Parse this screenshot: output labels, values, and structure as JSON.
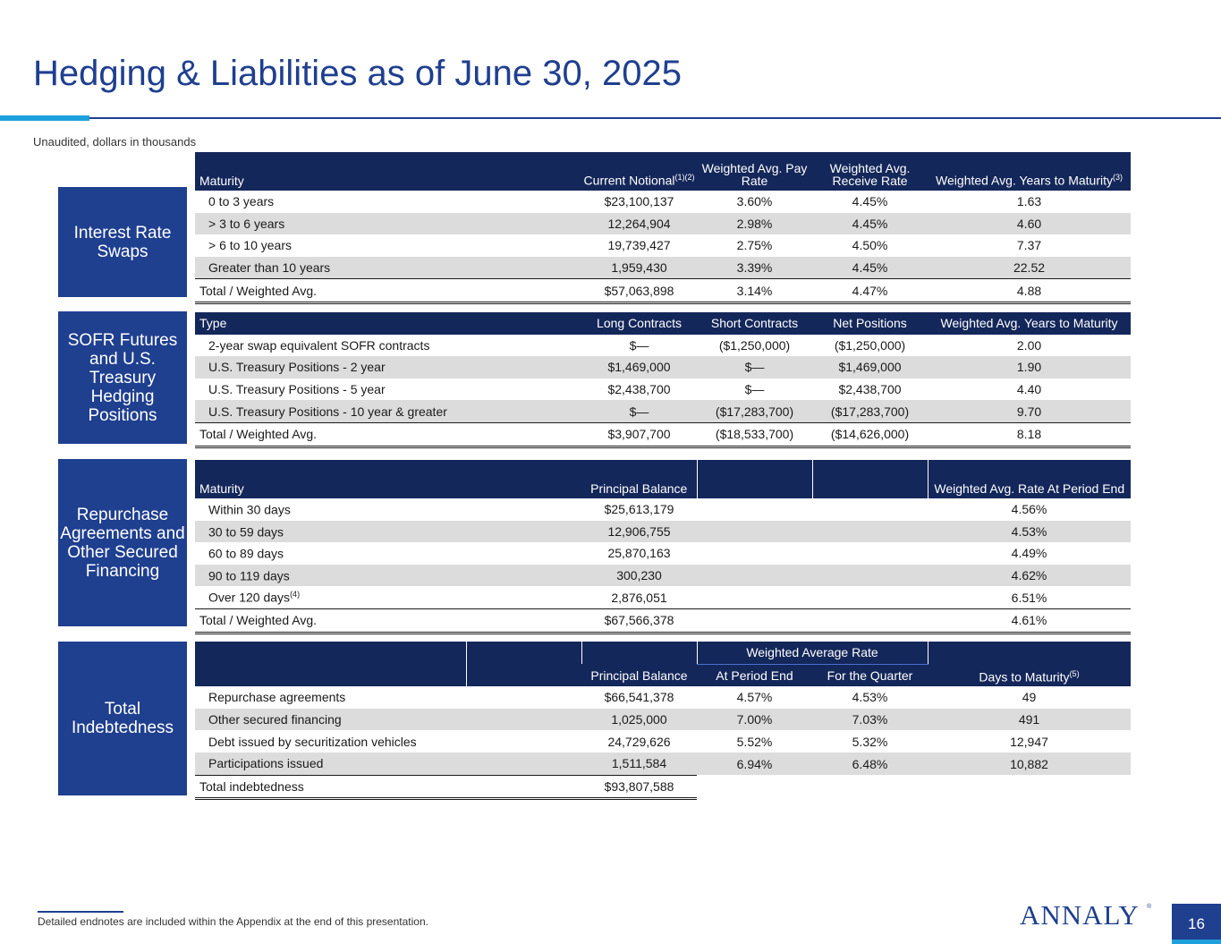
{
  "title": "Hedging & Liabilities as of June 30, 2025",
  "subtitle": "Unaudited, dollars in thousands",
  "swaps": {
    "label": "Interest Rate Swaps",
    "headers": {
      "maturity": "Maturity",
      "notional": "Current Notional",
      "notional_note": "(1)(2)",
      "pay": "Weighted Avg. Pay Rate",
      "receive": "Weighted Avg. Receive Rate",
      "years": "Weighted Avg. Years to Maturity",
      "years_note": "(3)"
    },
    "rows": [
      {
        "maturity": "0 to 3 years",
        "notional": "$23,100,137",
        "pay": "3.60%",
        "receive": "4.45%",
        "years": "1.63"
      },
      {
        "maturity": "> 3 to 6 years",
        "notional": "12,264,904",
        "pay": "2.98%",
        "receive": "4.45%",
        "years": "4.60"
      },
      {
        "maturity": "> 6 to 10 years",
        "notional": "19,739,427",
        "pay": "2.75%",
        "receive": "4.50%",
        "years": "7.37"
      },
      {
        "maturity": "Greater than 10 years",
        "notional": "1,959,430",
        "pay": "3.39%",
        "receive": "4.45%",
        "years": "22.52"
      }
    ],
    "total": {
      "maturity": "Total / Weighted Avg.",
      "notional": "$57,063,898",
      "pay": "3.14%",
      "receive": "4.47%",
      "years": "4.88"
    }
  },
  "sofr": {
    "label": "SOFR Futures and U.S. Treasury Hedging Positions",
    "headers": {
      "type": "Type",
      "long": "Long Contracts",
      "short": "Short Contracts",
      "net": "Net Positions",
      "years": "Weighted Avg. Years to Maturity"
    },
    "rows": [
      {
        "type": "2-year swap equivalent SOFR contracts",
        "long": "$—",
        "short": "($1,250,000)",
        "net": "($1,250,000)",
        "years": "2.00"
      },
      {
        "type": "U.S. Treasury Positions - 2 year",
        "long": "$1,469,000",
        "short": "$—",
        "net": "$1,469,000",
        "years": "1.90"
      },
      {
        "type": "U.S. Treasury Positions - 5 year",
        "long": "$2,438,700",
        "short": "$—",
        "net": "$2,438,700",
        "years": "4.40"
      },
      {
        "type": "U.S. Treasury Positions - 10 year & greater",
        "long": "$—",
        "short": "($17,283,700)",
        "net": "($17,283,700)",
        "years": "9.70"
      }
    ],
    "total": {
      "type": "Total / Weighted Avg.",
      "long": "$3,907,700",
      "short": "($18,533,700)",
      "net": "($14,626,000)",
      "years": "8.18"
    }
  },
  "repo": {
    "label": "Repurchase Agreements and Other Secured Financing",
    "headers": {
      "maturity": "Maturity",
      "principal": "Principal Balance",
      "rate": "Weighted Avg. Rate At Period End"
    },
    "rows": [
      {
        "maturity": "Within 30 days",
        "principal": "$25,613,179",
        "rate": "4.56%",
        "note": ""
      },
      {
        "maturity": "30 to 59 days",
        "principal": "12,906,755",
        "rate": "4.53%",
        "note": ""
      },
      {
        "maturity": "60 to 89 days",
        "principal": "25,870,163",
        "rate": "4.49%",
        "note": ""
      },
      {
        "maturity": "90 to 119 days",
        "principal": "300,230",
        "rate": "4.62%",
        "note": ""
      },
      {
        "maturity": "Over 120 days",
        "principal": "2,876,051",
        "rate": "6.51%",
        "note": "(4)"
      }
    ],
    "total": {
      "maturity": "Total / Weighted Avg.",
      "principal": "$67,566,378",
      "rate": "4.61%"
    }
  },
  "debt": {
    "label": "Total Indebtedness",
    "headers": {
      "group": "Weighted Average Rate",
      "principal": "Principal Balance",
      "period_end": "At Period End",
      "quarter": "For the Quarter",
      "days": "Days to Maturity",
      "days_note": "(5)"
    },
    "rows": [
      {
        "name": "Repurchase agreements",
        "principal": "$66,541,378",
        "period_end": "4.57%",
        "quarter": "4.53%",
        "days": "49"
      },
      {
        "name": "Other secured financing",
        "principal": "1,025,000",
        "period_end": "7.00%",
        "quarter": "7.03%",
        "days": "491"
      },
      {
        "name": "Debt issued by securitization vehicles",
        "principal": "24,729,626",
        "period_end": "5.52%",
        "quarter": "5.32%",
        "days": "12,947"
      },
      {
        "name": "Participations issued",
        "principal": "1,511,584",
        "period_end": "6.94%",
        "quarter": "6.48%",
        "days": "10,882"
      }
    ],
    "total": {
      "name": "Total indebtedness",
      "principal": "$93,807,588"
    }
  },
  "footnote": "Detailed endnotes are included within the Appendix at the end of this presentation.",
  "logo": "ANNALY",
  "logo_mark": "®",
  "page_number": "16",
  "colors": {
    "primary": "#1f3f8f",
    "header": "#14275a",
    "accent": "#1ea0dc",
    "stripe": "#dcdcdc"
  }
}
